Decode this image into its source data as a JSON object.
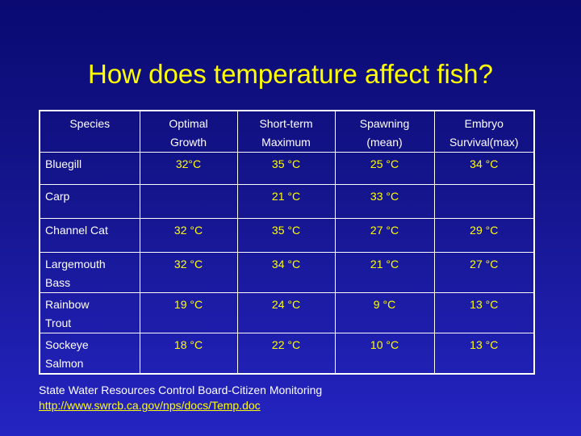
{
  "title": "How does temperature affect fish?",
  "table": {
    "headers": [
      [
        "Species"
      ],
      [
        "Optimal",
        "Growth"
      ],
      [
        "Short-term",
        "Maximum"
      ],
      [
        "Spawning",
        "(mean)"
      ],
      [
        "Embryo",
        "Survival(max)"
      ]
    ],
    "rows": [
      {
        "species": [
          "Bluegill"
        ],
        "values": [
          "32°C",
          "35 °C",
          "25 °C",
          "34 °C"
        ]
      },
      {
        "species": [
          "Carp"
        ],
        "values": [
          "",
          "21 °C",
          "33 °C",
          ""
        ]
      },
      {
        "species": [
          "Channel Cat"
        ],
        "values": [
          "32 °C",
          "35 °C",
          "27 °C",
          "29 °C"
        ]
      },
      {
        "species": [
          "Largemouth",
          "Bass"
        ],
        "values": [
          "32 °C",
          "34 °C",
          "21 °C",
          "27 °C"
        ]
      },
      {
        "species": [
          "Rainbow",
          "Trout"
        ],
        "values": [
          "19 °C",
          "24 °C",
          "9 °C",
          "13 °C"
        ]
      },
      {
        "species": [
          "Sockeye",
          "Salmon"
        ],
        "values": [
          "18 °C",
          "22 °C",
          "10 °C",
          "13 °C"
        ]
      }
    ]
  },
  "source": {
    "text": "State Water Resources Control Board-Citizen Monitoring",
    "link": "http://www.swrcb.ca.gov/nps/docs/Temp.doc"
  },
  "colors": {
    "background_top": "#0a0a72",
    "background_bottom": "#2424c2",
    "title": "#ffff00",
    "value_text": "#ffff00",
    "label_text": "#ffffff"
  }
}
